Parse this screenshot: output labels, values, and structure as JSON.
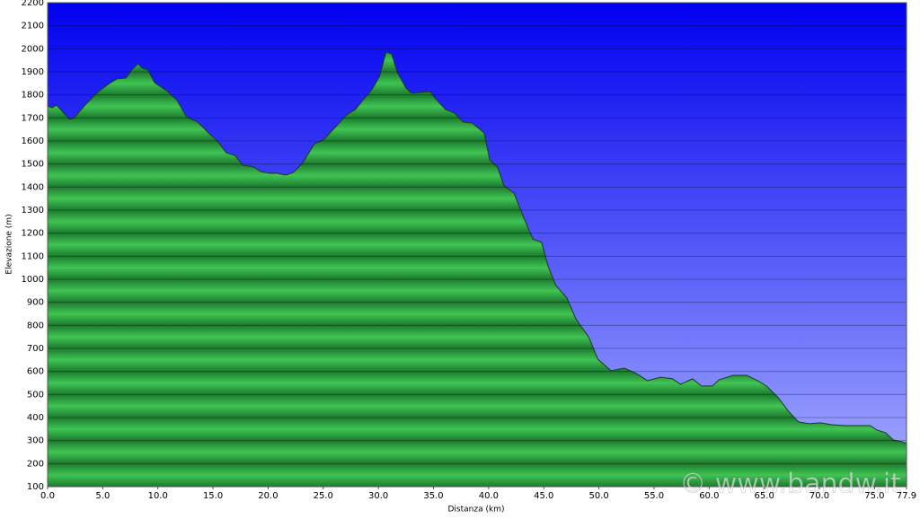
{
  "chart_data": {
    "type": "area",
    "x_label": "Distanza   (km)",
    "y_label": "Elevazione (m)",
    "watermark": "© www.bandw.it",
    "x": [
      0,
      0.4,
      0.8,
      1.4,
      2.0,
      2.4,
      3.4,
      4.5,
      5.5,
      6.3,
      7.1,
      7.7,
      8.2,
      8.6,
      9.1,
      9.7,
      10.8,
      11.7,
      12.6,
      13.6,
      14.6,
      15.4,
      16.2,
      17.0,
      17.7,
      18.7,
      19.3,
      20.1,
      20.8,
      21.6,
      22.3,
      23.1,
      24.2,
      25.0,
      26.0,
      27.1,
      27.9,
      28.7,
      29.4,
      30.1,
      30.7,
      31.2,
      31.7,
      32.5,
      33.0,
      33.8,
      34.7,
      35.2,
      36.1,
      36.9,
      37.7,
      38.5,
      39.6,
      40.1,
      40.8,
      41.4,
      42.3,
      43.1,
      44.0,
      44.8,
      45.4,
      46.1,
      47.1,
      47.9,
      49.1,
      49.9,
      51.1,
      52.3,
      53.4,
      54.4,
      55.6,
      56.7,
      57.4,
      58.5,
      59.3,
      60.3,
      60.9,
      62.2,
      63.4,
      64.4,
      65.2,
      66.2,
      67.2,
      68.1,
      69.1,
      70.1,
      71.1,
      72.3,
      73.6,
      74.6,
      75.2,
      76.0,
      76.7,
      77.5,
      77.9
    ],
    "values": [
      1752,
      1744,
      1756,
      1725,
      1694,
      1700,
      1756,
      1810,
      1846,
      1870,
      1873,
      1912,
      1935,
      1916,
      1908,
      1853,
      1818,
      1779,
      1705,
      1682,
      1635,
      1600,
      1549,
      1537,
      1495,
      1487,
      1468,
      1460,
      1460,
      1452,
      1464,
      1503,
      1588,
      1604,
      1655,
      1713,
      1736,
      1783,
      1822,
      1880,
      1986,
      1978,
      1900,
      1830,
      1807,
      1811,
      1814,
      1783,
      1736,
      1721,
      1682,
      1678,
      1635,
      1518,
      1487,
      1405,
      1374,
      1277,
      1175,
      1160,
      1055,
      973,
      918,
      829,
      747,
      653,
      603,
      614,
      591,
      560,
      575,
      568,
      544,
      568,
      537,
      537,
      564,
      583,
      583,
      560,
      537,
      490,
      427,
      381,
      373,
      377,
      369,
      365,
      365,
      365,
      346,
      334,
      303,
      295,
      287
    ],
    "color": "#2fae45",
    "xlim": [
      0,
      77.9
    ],
    "ylim": [
      100,
      2200
    ],
    "xticks": [
      {
        "value": 0,
        "label": "0.0"
      },
      {
        "value": 5,
        "label": "5.0"
      },
      {
        "value": 10,
        "label": "10.0"
      },
      {
        "value": 15,
        "label": "15.0"
      },
      {
        "value": 20,
        "label": "20.0"
      },
      {
        "value": 25,
        "label": "25.0"
      },
      {
        "value": 30,
        "label": "30.0"
      },
      {
        "value": 35,
        "label": "35.0"
      },
      {
        "value": 40,
        "label": "40.0"
      },
      {
        "value": 45,
        "label": "45.0"
      },
      {
        "value": 50,
        "label": "50.0"
      },
      {
        "value": 55,
        "label": "55.0"
      },
      {
        "value": 60,
        "label": "60.0"
      },
      {
        "value": 65,
        "label": "65.0"
      },
      {
        "value": 70,
        "label": "70.0"
      },
      {
        "value": 75,
        "label": "75.0"
      },
      77.9
    ],
    "yticks": [
      100,
      200,
      300,
      400,
      500,
      600,
      700,
      800,
      900,
      1000,
      1100,
      1200,
      1300,
      1400,
      1500,
      1600,
      1700,
      1800,
      1900,
      2000,
      2100,
      2200
    ],
    "grid": true
  }
}
